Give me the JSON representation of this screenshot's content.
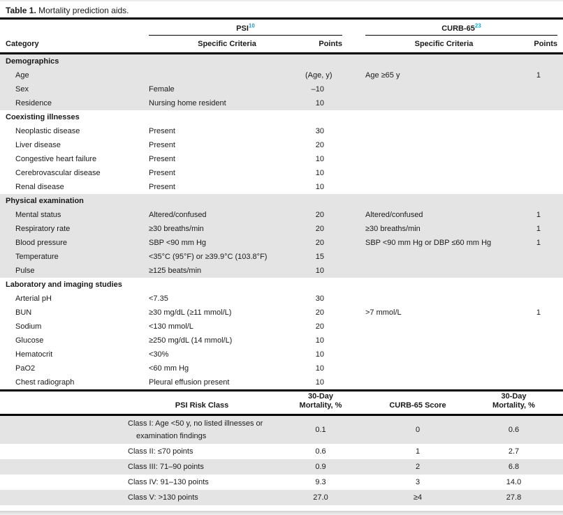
{
  "title": {
    "label": "Table 1.",
    "text": " Mortality prediction aids."
  },
  "accent_color": "#1e9bd7",
  "shading_color": "#e4e4e4",
  "main_table": {
    "groups": {
      "psi": {
        "name": "PSI",
        "sup": "10"
      },
      "curb": {
        "name": "CURB-65",
        "sup": "23"
      }
    },
    "columns": {
      "category": "Category",
      "psi_criteria": "Specific Criteria",
      "psi_points": "Points",
      "curb_criteria": "Specific Criteria",
      "curb_points": "Points"
    },
    "sections": [
      {
        "header": "Demographics",
        "rows": [
          {
            "category": "Age",
            "psi_points": "(Age, y)",
            "curb_criteria": "Age ≥65 y",
            "curb_points": "1"
          },
          {
            "category": "Sex",
            "psi_criteria": "Female",
            "psi_points": "–10"
          },
          {
            "category": "Residence",
            "psi_criteria": "Nursing home resident",
            "psi_points": "10"
          }
        ]
      },
      {
        "header": "Coexisting illnesses",
        "rows": [
          {
            "category": "Neoplastic disease",
            "psi_criteria": "Present",
            "psi_points": "30"
          },
          {
            "category": "Liver disease",
            "psi_criteria": "Present",
            "psi_points": "20"
          },
          {
            "category": "Congestive heart failure",
            "psi_criteria": "Present",
            "psi_points": "10"
          },
          {
            "category": "Cerebrovascular disease",
            "psi_criteria": "Present",
            "psi_points": "10"
          },
          {
            "category": "Renal disease",
            "psi_criteria": "Present",
            "psi_points": "10"
          }
        ]
      },
      {
        "header": "Physical examination",
        "rows": [
          {
            "category": "Mental status",
            "psi_criteria": "Altered/confused",
            "psi_points": "20",
            "curb_criteria": "Altered/confused",
            "curb_points": "1"
          },
          {
            "category": "Respiratory rate",
            "psi_criteria": "≥30 breaths/min",
            "psi_points": "20",
            "curb_criteria": "≥30 breaths/min",
            "curb_points": "1"
          },
          {
            "category": "Blood pressure",
            "psi_criteria": "SBP <90 mm Hg",
            "psi_points": "20",
            "curb_criteria": "SBP <90 mm Hg or DBP ≤60 mm Hg",
            "curb_points": "1"
          },
          {
            "category": "Temperature",
            "psi_criteria": "<35°C (95°F) or ≥39.9°C (103.8°F)",
            "psi_points": "15"
          },
          {
            "category": "Pulse",
            "psi_criteria": "≥125 beats/min",
            "psi_points": "10"
          }
        ]
      },
      {
        "header": "Laboratory and imaging studies",
        "rows": [
          {
            "category": "Arterial pH",
            "psi_criteria": "<7.35",
            "psi_points": "30"
          },
          {
            "category": "BUN",
            "psi_criteria": "≥30 mg/dL (≥11 mmol/L)",
            "psi_points": "20",
            "curb_criteria": ">7 mmol/L",
            "curb_points": "1"
          },
          {
            "category": "Sodium",
            "psi_criteria": "<130 mmol/L",
            "psi_points": "20"
          },
          {
            "category": "Glucose",
            "psi_criteria": "≥250 mg/dL (14 mmol/L)",
            "psi_points": "10"
          },
          {
            "category": "Hematocrit",
            "psi_criteria": "<30%",
            "psi_points": "10"
          },
          {
            "category": "PaO2",
            "psi_criteria": "<60 mm Hg",
            "psi_points": "10"
          },
          {
            "category": "Chest radiograph",
            "psi_criteria": "Pleural effusion present",
            "psi_points": "10"
          }
        ]
      }
    ]
  },
  "risk_table": {
    "columns": {
      "psi_class": "PSI Risk Class",
      "psi_mortality_line1": "30-Day",
      "psi_mortality_line2": "Mortality, %",
      "curb_score": "CURB-65 Score",
      "curb_mortality_line1": "30-Day",
      "curb_mortality_line2": "Mortality, %"
    },
    "rows": [
      {
        "psi_class": "Class I: Age <50 y, no listed illnesses or examination findings",
        "psi_mortality": "0.1",
        "curb_score": "0",
        "curb_mortality": "0.6"
      },
      {
        "psi_class": "Class II: ≤70 points",
        "psi_mortality": "0.6",
        "curb_score": "1",
        "curb_mortality": "2.7"
      },
      {
        "psi_class": "Class III: 71–90 points",
        "psi_mortality": "0.9",
        "curb_score": "2",
        "curb_mortality": "6.8"
      },
      {
        "psi_class": "Class IV: 91–130 points",
        "psi_mortality": "9.3",
        "curb_score": "3",
        "curb_mortality": "14.0"
      },
      {
        "psi_class": "Class V: >130 points",
        "psi_mortality": "27.0",
        "curb_score": "≥4",
        "curb_mortality": "27.8"
      }
    ]
  }
}
